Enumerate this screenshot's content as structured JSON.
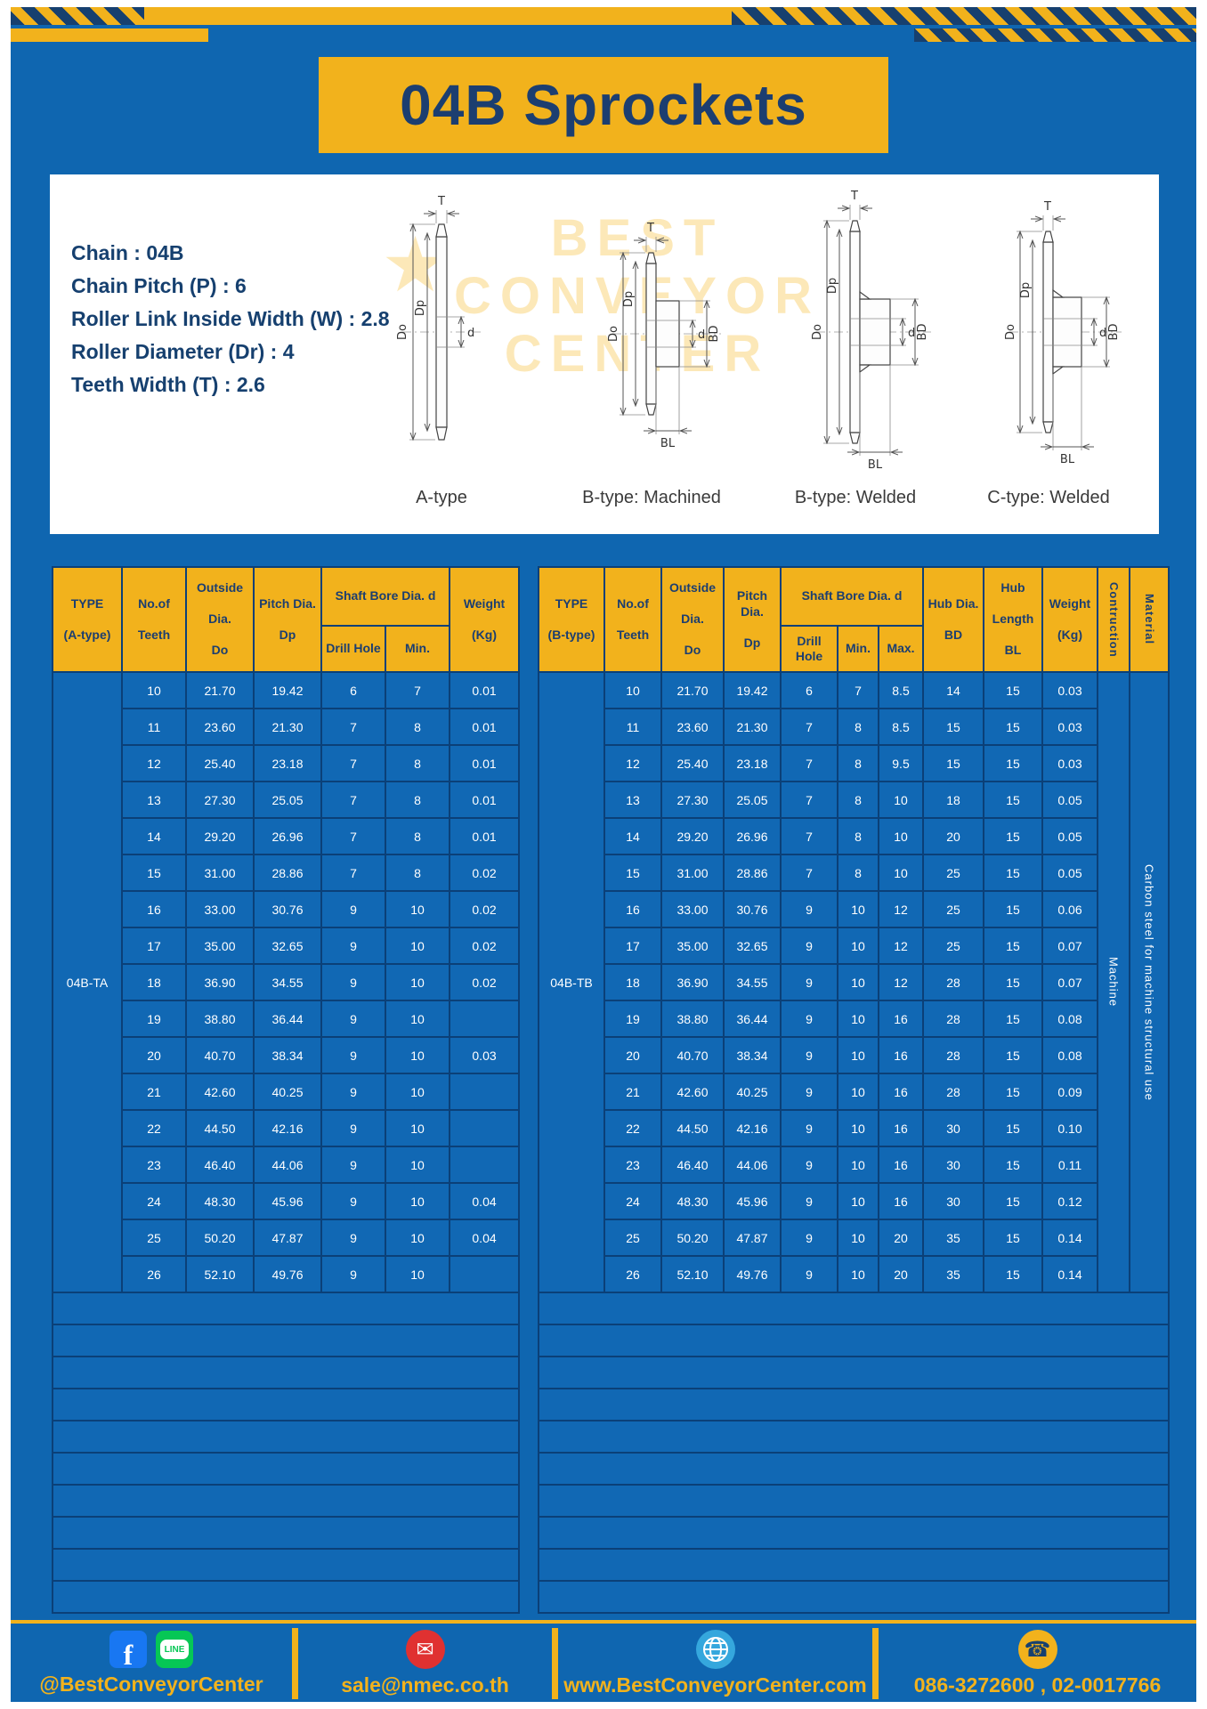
{
  "colors": {
    "page_blue": "#0F66B0",
    "accent_yellow": "#F2B21C",
    "navy": "#1C3E70",
    "cell_border": "#0B4078",
    "facebook_blue": "#1877F2",
    "line_green": "#06C755",
    "mail_red": "#E03131",
    "globe_blue": "#35A7DD"
  },
  "title": "04B Sprockets",
  "specs": {
    "lines": [
      "Chain : 04B",
      "Chain Pitch (P) : 6",
      "Roller Link Inside Width (W) : 2.8",
      "Roller Diameter (Dr) : 4",
      "Teeth Width (T) : 2.6"
    ]
  },
  "drawing": {
    "captions": [
      "A-type",
      "B-type: Machined",
      "B-type: Welded",
      "C-type: Welded"
    ],
    "dims": {
      "t": "T",
      "do": "Do",
      "dp": "Dp",
      "d": "d",
      "bd": "BD",
      "bl": "BL"
    },
    "watermark": "BEST\nCONVEYOR\nCENTER",
    "watermark_star": "★"
  },
  "table_a": {
    "headers": {
      "type": "TYPE\n\n(A-type)",
      "teeth": "No.of\n\nTeeth",
      "outside": "Outside\n\nDia.\n\nDo",
      "pitch": "Pitch Dia.\n\nDp",
      "shaft": "Shaft Bore Dia. d",
      "drill": "Drill Hole",
      "min": "Min.",
      "weight": "Weight\n\n(Kg)"
    },
    "type_value": "04B-TA",
    "rows": [
      [
        "10",
        "21.70",
        "19.42",
        "6",
        "7",
        "0.01"
      ],
      [
        "11",
        "23.60",
        "21.30",
        "7",
        "8",
        "0.01"
      ],
      [
        "12",
        "25.40",
        "23.18",
        "7",
        "8",
        "0.01"
      ],
      [
        "13",
        "27.30",
        "25.05",
        "7",
        "8",
        "0.01"
      ],
      [
        "14",
        "29.20",
        "26.96",
        "7",
        "8",
        "0.01"
      ],
      [
        "15",
        "31.00",
        "28.86",
        "7",
        "8",
        "0.02"
      ],
      [
        "16",
        "33.00",
        "30.76",
        "9",
        "10",
        "0.02"
      ],
      [
        "17",
        "35.00",
        "32.65",
        "9",
        "10",
        "0.02"
      ],
      [
        "18",
        "36.90",
        "34.55",
        "9",
        "10",
        "0.02"
      ],
      [
        "19",
        "38.80",
        "36.44",
        "9",
        "10",
        ""
      ],
      [
        "20",
        "40.70",
        "38.34",
        "9",
        "10",
        "0.03"
      ],
      [
        "21",
        "42.60",
        "40.25",
        "9",
        "10",
        ""
      ],
      [
        "22",
        "44.50",
        "42.16",
        "9",
        "10",
        ""
      ],
      [
        "23",
        "46.40",
        "44.06",
        "9",
        "10",
        ""
      ],
      [
        "24",
        "48.30",
        "45.96",
        "9",
        "10",
        "0.04"
      ],
      [
        "25",
        "50.20",
        "47.87",
        "9",
        "10",
        "0.04"
      ],
      [
        "26",
        "52.10",
        "49.76",
        "9",
        "10",
        ""
      ]
    ],
    "empty_rows": 10
  },
  "table_b": {
    "headers": {
      "type": "TYPE\n\n(B-type)",
      "teeth": "No.of\n\nTeeth",
      "outside": "Outside\n\nDia.\n\nDo",
      "pitch": "Pitch Dia.\n\nDp",
      "shaft": "Shaft Bore Dia. d",
      "drill": "Drill Hole",
      "min": "Min.",
      "max": "Max.",
      "hub_dia": "Hub Dia.\n\nBD",
      "hub_len": "Hub\n\nLength\n\nBL",
      "weight": "Weight\n\n(Kg)",
      "construction": "Contruction",
      "material": "Material"
    },
    "type_value": "04B-TB",
    "construction_value": "Machine",
    "material_value": "Carbon steel for machine structural use",
    "rows": [
      [
        "10",
        "21.70",
        "19.42",
        "6",
        "7",
        "8.5",
        "14",
        "15",
        "0.03"
      ],
      [
        "11",
        "23.60",
        "21.30",
        "7",
        "8",
        "8.5",
        "15",
        "15",
        "0.03"
      ],
      [
        "12",
        "25.40",
        "23.18",
        "7",
        "8",
        "9.5",
        "15",
        "15",
        "0.03"
      ],
      [
        "13",
        "27.30",
        "25.05",
        "7",
        "8",
        "10",
        "18",
        "15",
        "0.05"
      ],
      [
        "14",
        "29.20",
        "26.96",
        "7",
        "8",
        "10",
        "20",
        "15",
        "0.05"
      ],
      [
        "15",
        "31.00",
        "28.86",
        "7",
        "8",
        "10",
        "25",
        "15",
        "0.05"
      ],
      [
        "16",
        "33.00",
        "30.76",
        "9",
        "10",
        "12",
        "25",
        "15",
        "0.06"
      ],
      [
        "17",
        "35.00",
        "32.65",
        "9",
        "10",
        "12",
        "25",
        "15",
        "0.07"
      ],
      [
        "18",
        "36.90",
        "34.55",
        "9",
        "10",
        "12",
        "28",
        "15",
        "0.07"
      ],
      [
        "19",
        "38.80",
        "36.44",
        "9",
        "10",
        "16",
        "28",
        "15",
        "0.08"
      ],
      [
        "20",
        "40.70",
        "38.34",
        "9",
        "10",
        "16",
        "28",
        "15",
        "0.08"
      ],
      [
        "21",
        "42.60",
        "40.25",
        "9",
        "10",
        "16",
        "28",
        "15",
        "0.09"
      ],
      [
        "22",
        "44.50",
        "42.16",
        "9",
        "10",
        "16",
        "30",
        "15",
        "0.10"
      ],
      [
        "23",
        "46.40",
        "44.06",
        "9",
        "10",
        "16",
        "30",
        "15",
        "0.11"
      ],
      [
        "24",
        "48.30",
        "45.96",
        "9",
        "10",
        "16",
        "30",
        "15",
        "0.12"
      ],
      [
        "25",
        "50.20",
        "47.87",
        "9",
        "10",
        "20",
        "35",
        "15",
        "0.14"
      ],
      [
        "26",
        "52.10",
        "49.76",
        "9",
        "10",
        "20",
        "35",
        "15",
        "0.14"
      ]
    ],
    "empty_rows": 10
  },
  "footer": {
    "facebook_label": "f",
    "line_label": "LINE",
    "social_handle": "@BestConveyorCenter",
    "email": "sale@nmec.co.th",
    "website": "www.BestConveyorCenter.com",
    "phone": "086-3272600 , 02-0017766",
    "icons": {
      "mail": "✉",
      "phone": "☎"
    }
  }
}
